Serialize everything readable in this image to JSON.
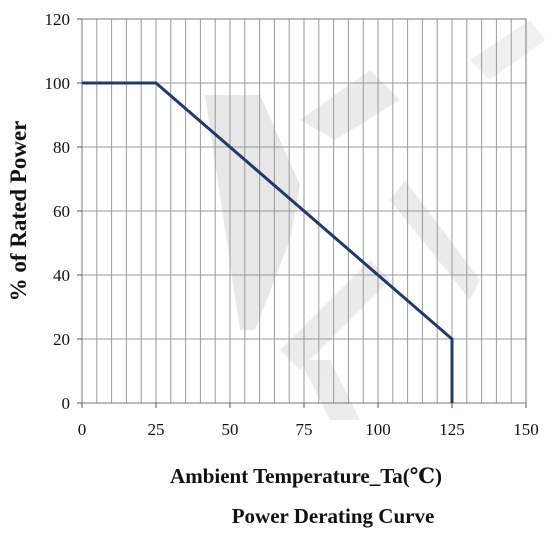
{
  "chart_data": {
    "type": "line",
    "title": "Power Derating Curve",
    "xlabel": "Ambient Temperature_Ta(℃)",
    "ylabel": "% of Rated Power",
    "xlim": [
      0,
      150
    ],
    "ylim": [
      0,
      120
    ],
    "x_ticks": [
      0,
      25,
      50,
      75,
      100,
      125,
      150
    ],
    "y_ticks": [
      0,
      20,
      40,
      60,
      80,
      100,
      120
    ],
    "grid": true,
    "series": [
      {
        "x": [
          0,
          25,
          125,
          125
        ],
        "y": [
          100,
          100,
          20,
          0
        ],
        "color": "#1f3b6b"
      }
    ]
  }
}
